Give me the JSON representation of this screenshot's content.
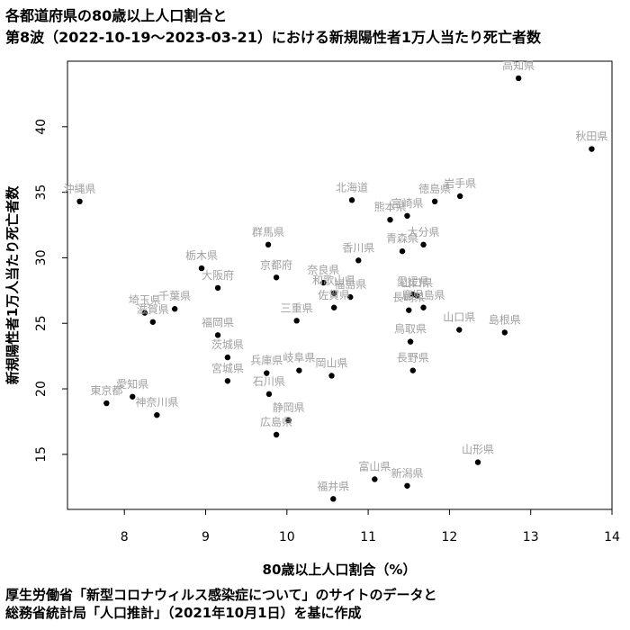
{
  "title_lines": [
    "各都道府県の80歳以上人口割合と",
    "第8波（2022-10-19〜2023-03-21）における新規陽性者1万人当たり死亡者数"
  ],
  "caption_lines": [
    "厚生労働省「新型コロナウィルス感染症について」のサイトのデータと",
    "総務省統計局「人口推計」（2021年10月1日）を基に作成"
  ],
  "chart_data": {
    "type": "scatter",
    "title": "各都道府県の80歳以上人口割合と第8波（2022-10-19〜2023-03-21）における新規陽性者1万人当たり死亡者数",
    "xlabel": "80歳以上人口割合（%）",
    "ylabel": "新規陽性者1万人当たり死亡者数",
    "xlim": [
      7.3,
      14.0
    ],
    "ylim": [
      10.8,
      45.0
    ],
    "xticks": [
      8,
      9,
      10,
      11,
      12,
      13,
      14
    ],
    "yticks": [
      15,
      20,
      25,
      30,
      35,
      40
    ],
    "grid": false,
    "point_color": "#000000",
    "label_color": "#a0a0a0",
    "points": [
      {
        "name": "高知県",
        "x": 12.85,
        "y": 43.7
      },
      {
        "name": "秋田県",
        "x": 13.75,
        "y": 38.3
      },
      {
        "name": "沖縄県",
        "x": 7.45,
        "y": 34.3
      },
      {
        "name": "北海道",
        "x": 10.8,
        "y": 34.4
      },
      {
        "name": "岩手県",
        "x": 12.13,
        "y": 34.7
      },
      {
        "name": "徳島県",
        "x": 11.82,
        "y": 34.3
      },
      {
        "name": "宮崎県",
        "x": 11.48,
        "y": 33.2
      },
      {
        "name": "熊本県",
        "x": 11.27,
        "y": 32.9
      },
      {
        "name": "大分県",
        "x": 11.68,
        "y": 31.0
      },
      {
        "name": "青森県",
        "x": 11.42,
        "y": 30.5
      },
      {
        "name": "群馬県",
        "x": 9.77,
        "y": 31.0
      },
      {
        "name": "香川県",
        "x": 10.88,
        "y": 29.8
      },
      {
        "name": "栃木県",
        "x": 8.95,
        "y": 29.2
      },
      {
        "name": "京都府",
        "x": 9.87,
        "y": 28.5
      },
      {
        "name": "奈良県",
        "x": 10.45,
        "y": 28.1
      },
      {
        "name": "大阪府",
        "x": 9.15,
        "y": 27.7
      },
      {
        "name": "和歌山県",
        "x": 10.58,
        "y": 27.3
      },
      {
        "name": "福島県",
        "x": 10.78,
        "y": 27.0
      },
      {
        "name": "佐賀県",
        "x": 10.58,
        "y": 26.2
      },
      {
        "name": "愛媛県",
        "x": 11.55,
        "y": 27.2
      },
      {
        "name": "山口県",
        "x": 11.6,
        "y": 27.1
      },
      {
        "name": "長崎県",
        "x": 11.5,
        "y": 26.0
      },
      {
        "name": "鹿児島県",
        "x": 11.68,
        "y": 26.2
      },
      {
        "name": "島根県",
        "x": 12.68,
        "y": 24.3
      },
      {
        "name": "山口県",
        "x": 12.12,
        "y": 24.5
      },
      {
        "name": "鳥取県",
        "x": 11.52,
        "y": 23.6
      },
      {
        "name": "千葉県",
        "x": 8.62,
        "y": 26.1
      },
      {
        "name": "埼玉県",
        "x": 8.25,
        "y": 25.8
      },
      {
        "name": "滋賀県",
        "x": 8.35,
        "y": 25.1
      },
      {
        "name": "三重県",
        "x": 10.12,
        "y": 25.2
      },
      {
        "name": "福岡県",
        "x": 9.15,
        "y": 24.1
      },
      {
        "name": "茨城県",
        "x": 9.27,
        "y": 22.4
      },
      {
        "name": "岐阜県",
        "x": 10.15,
        "y": 21.4
      },
      {
        "name": "兵庫県",
        "x": 9.75,
        "y": 21.2
      },
      {
        "name": "岡山県",
        "x": 10.55,
        "y": 21.0
      },
      {
        "name": "長野県",
        "x": 11.55,
        "y": 21.4
      },
      {
        "name": "宮城県",
        "x": 9.27,
        "y": 20.6
      },
      {
        "name": "石川県",
        "x": 9.78,
        "y": 19.6
      },
      {
        "name": "愛知県",
        "x": 8.1,
        "y": 19.4
      },
      {
        "name": "東京都",
        "x": 7.78,
        "y": 18.9
      },
      {
        "name": "神奈川県",
        "x": 8.4,
        "y": 18.0
      },
      {
        "name": "静岡県",
        "x": 10.02,
        "y": 17.6
      },
      {
        "name": "広島県",
        "x": 9.87,
        "y": 16.5
      },
      {
        "name": "山形県",
        "x": 12.35,
        "y": 14.4
      },
      {
        "name": "富山県",
        "x": 11.08,
        "y": 13.1
      },
      {
        "name": "新潟県",
        "x": 11.48,
        "y": 12.6
      },
      {
        "name": "福井県",
        "x": 10.57,
        "y": 11.6
      }
    ]
  }
}
